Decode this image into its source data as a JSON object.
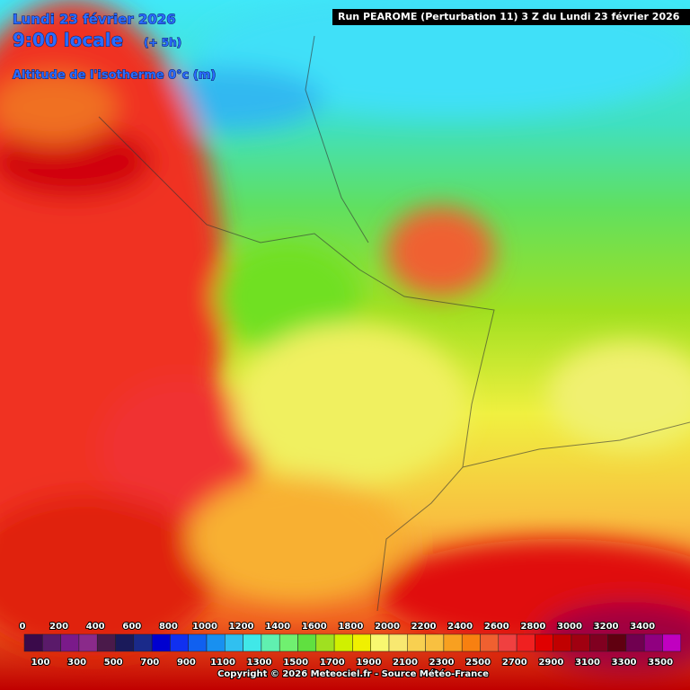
{
  "header": {
    "date": "Lundi 23 février 2026",
    "time": "9:00 locale",
    "offset": "(+ 5h)",
    "parameter": "Altitude de l'isotherme 0°c (m)",
    "run": "Run PEAROME (Perturbation 11) 3 Z du Lundi 23 février 2026"
  },
  "legend": {
    "top_labels": [
      0,
      200,
      400,
      600,
      800,
      1000,
      1200,
      1400,
      1600,
      1800,
      2000,
      2200,
      2400,
      2600,
      2800,
      3000,
      3200,
      3400
    ],
    "bottom_labels": [
      100,
      300,
      500,
      700,
      900,
      1100,
      1300,
      1500,
      1700,
      1900,
      2100,
      2300,
      2500,
      2700,
      2900,
      3100,
      3300,
      3500
    ],
    "colors": [
      "#3a0a4a",
      "#5a1a6a",
      "#7a1a8a",
      "#8a2a8a",
      "#4a1a4a",
      "#1a1a5a",
      "#1a2a8a",
      "#0000d0",
      "#1030f0",
      "#1060f0",
      "#1890f0",
      "#30c0f0",
      "#40e8e8",
      "#60f0b0",
      "#70f070",
      "#60e040",
      "#a0e020",
      "#d0f000",
      "#f0f000",
      "#f8f870",
      "#f8e870",
      "#f8d050",
      "#f8c040",
      "#f8a020",
      "#f88010",
      "#f06030",
      "#f04040",
      "#f02020",
      "#e00000",
      "#c00000",
      "#a00010",
      "#800020",
      "#600010",
      "#700050",
      "#900080",
      "#c000c0"
    ]
  },
  "footer": {
    "copyright": "Copyright © 2026 Meteociel.fr - Source Météo-France"
  }
}
